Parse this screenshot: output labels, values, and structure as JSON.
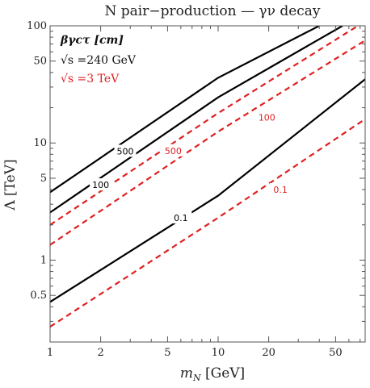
{
  "chart_data": {
    "type": "line",
    "title": "N pair−production — γν decay",
    "xlabel": "m_N [GeV]",
    "ylabel": "Λ [TeV]",
    "x_scale": "log",
    "y_scale": "log",
    "xlim": [
      1,
      75
    ],
    "ylim": [
      0.2,
      100
    ],
    "x_ticks": [
      "1",
      "2",
      "5",
      "10",
      "20",
      "50"
    ],
    "y_ticks": [
      "0.5",
      "1",
      "5",
      "10",
      "50",
      "100"
    ],
    "legend": {
      "placement": "top-left",
      "header": "βγcτ [cm]",
      "entries": [
        {
          "label": "√s =240 GeV",
          "color": "#000000",
          "style": "solid"
        },
        {
          "label": "√s =3 TeV",
          "color": "#e02020",
          "style": "dashed"
        }
      ]
    },
    "series": [
      {
        "group": "240 GeV",
        "label": "500",
        "color": "#000000",
        "dash": false,
        "points": [
          [
            1,
            3.8
          ],
          [
            10,
            36
          ],
          [
            40,
            100
          ]
        ]
      },
      {
        "group": "240 GeV",
        "label": "100",
        "color": "#000000",
        "dash": false,
        "points": [
          [
            1,
            2.55
          ],
          [
            10,
            24.5
          ],
          [
            55,
            100
          ]
        ]
      },
      {
        "group": "240 GeV",
        "label": "0.1",
        "color": "#000000",
        "dash": false,
        "points": [
          [
            1,
            0.44
          ],
          [
            10,
            3.55
          ],
          [
            75,
            35
          ]
        ]
      },
      {
        "group": "3 TeV",
        "label": "500",
        "color": "#e02020",
        "dash": true,
        "points": [
          [
            1,
            2.0
          ],
          [
            10,
            18
          ],
          [
            68,
            100
          ]
        ]
      },
      {
        "group": "3 TeV",
        "label": "100",
        "color": "#e02020",
        "dash": true,
        "points": [
          [
            1,
            1.35
          ],
          [
            10,
            12.5
          ],
          [
            75,
            75
          ]
        ]
      },
      {
        "group": "3 TeV",
        "label": "0.1",
        "color": "#e02020",
        "dash": true,
        "points": [
          [
            1,
            0.27
          ],
          [
            10,
            2.3
          ],
          [
            75,
            16
          ]
        ]
      }
    ],
    "contour_labels": [
      {
        "text": "500",
        "color": "#000000",
        "at": [
          2.8,
          8.5
        ]
      },
      {
        "text": "100",
        "color": "#000000",
        "at": [
          2.0,
          4.4
        ]
      },
      {
        "text": "0.1",
        "color": "#000000",
        "at": [
          6.0,
          2.3
        ]
      },
      {
        "text": "500",
        "color": "#e02020",
        "at": [
          5.4,
          8.6
        ]
      },
      {
        "text": "100",
        "color": "#e02020",
        "at": [
          19.5,
          16.5
        ]
      },
      {
        "text": "0.1",
        "color": "#e02020",
        "at": [
          23.5,
          4.0
        ]
      }
    ]
  }
}
